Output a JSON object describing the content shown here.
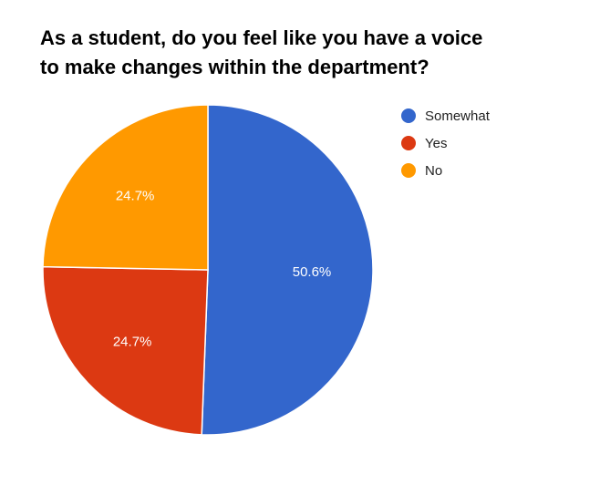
{
  "chart_data": {
    "type": "pie",
    "title_lines": [
      "As a student, do you feel like you have a voice",
      "to make changes within the department?"
    ],
    "slices": [
      {
        "name": "Somewhat",
        "value": 50.6,
        "label": "50.6%",
        "color": "#3366cc"
      },
      {
        "name": "Yes",
        "value": 24.7,
        "label": "24.7%",
        "color": "#dc3912"
      },
      {
        "name": "No",
        "value": 24.7,
        "label": "24.7%",
        "color": "#ff9900"
      }
    ],
    "legend_position": "right"
  }
}
